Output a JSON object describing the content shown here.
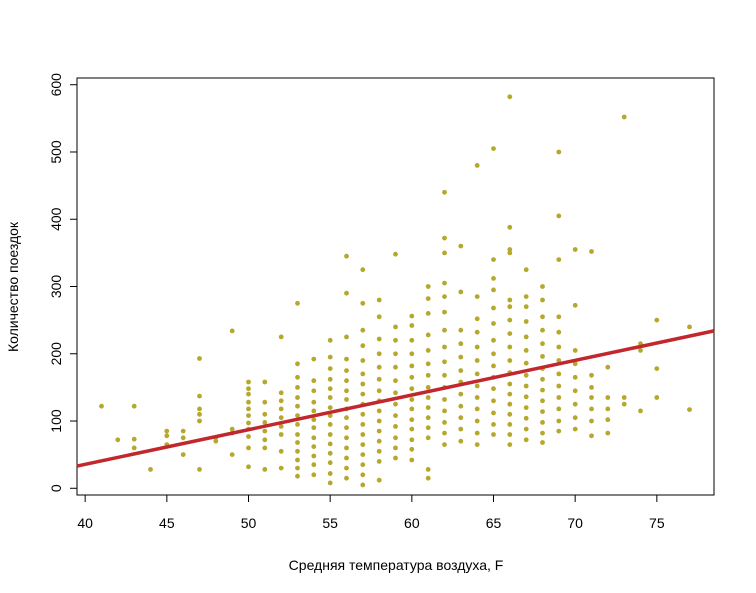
{
  "chart_data": {
    "type": "scatter",
    "title": "",
    "xlabel": "Средняя температура воздуха, F",
    "ylabel": "Количество поездок",
    "xlim": [
      39.5,
      78.5
    ],
    "ylim": [
      -10,
      610
    ],
    "x_ticks": [
      40,
      45,
      50,
      55,
      60,
      65,
      70,
      75
    ],
    "y_ticks": [
      0,
      100,
      200,
      300,
      400,
      500,
      600
    ],
    "grid": false,
    "legend": "none",
    "point_color": "#b5a82c",
    "line_color": "#c1272d",
    "regression_line": {
      "x": [
        39.5,
        78.5
      ],
      "y": [
        33,
        234
      ]
    },
    "points": [
      [
        41,
        122
      ],
      [
        42,
        72
      ],
      [
        43,
        60
      ],
      [
        43,
        73
      ],
      [
        43,
        122
      ],
      [
        44,
        28
      ],
      [
        45,
        65
      ],
      [
        45,
        78
      ],
      [
        45,
        85
      ],
      [
        46,
        50
      ],
      [
        46,
        75
      ],
      [
        46,
        85
      ],
      [
        47,
        28
      ],
      [
        47,
        100
      ],
      [
        47,
        110
      ],
      [
        47,
        118
      ],
      [
        47,
        137
      ],
      [
        47,
        193
      ],
      [
        48,
        70
      ],
      [
        48,
        75
      ],
      [
        49,
        50
      ],
      [
        49,
        82
      ],
      [
        49,
        88
      ],
      [
        49,
        234
      ],
      [
        50,
        32
      ],
      [
        50,
        60
      ],
      [
        50,
        77
      ],
      [
        50,
        88
      ],
      [
        50,
        97
      ],
      [
        50,
        108
      ],
      [
        50,
        118
      ],
      [
        50,
        128
      ],
      [
        50,
        140
      ],
      [
        50,
        148
      ],
      [
        50,
        158
      ],
      [
        51,
        28
      ],
      [
        51,
        60
      ],
      [
        51,
        72
      ],
      [
        51,
        85
      ],
      [
        51,
        98
      ],
      [
        51,
        110
      ],
      [
        51,
        128
      ],
      [
        51,
        158
      ],
      [
        52,
        30
      ],
      [
        52,
        55
      ],
      [
        52,
        80
      ],
      [
        52,
        92
      ],
      [
        52,
        105
      ],
      [
        52,
        118
      ],
      [
        52,
        130
      ],
      [
        52,
        142
      ],
      [
        52,
        225
      ],
      [
        53,
        18
      ],
      [
        53,
        30
      ],
      [
        53,
        42
      ],
      [
        53,
        55
      ],
      [
        53,
        68
      ],
      [
        53,
        80
      ],
      [
        53,
        95
      ],
      [
        53,
        108
      ],
      [
        53,
        122
      ],
      [
        53,
        135
      ],
      [
        53,
        150
      ],
      [
        53,
        165
      ],
      [
        53,
        185
      ],
      [
        53,
        275
      ],
      [
        54,
        20
      ],
      [
        54,
        35
      ],
      [
        54,
        48
      ],
      [
        54,
        62
      ],
      [
        54,
        75
      ],
      [
        54,
        90
      ],
      [
        54,
        102
      ],
      [
        54,
        115
      ],
      [
        54,
        128
      ],
      [
        54,
        145
      ],
      [
        54,
        160
      ],
      [
        54,
        192
      ],
      [
        55,
        8
      ],
      [
        55,
        22
      ],
      [
        55,
        38
      ],
      [
        55,
        52
      ],
      [
        55,
        66
      ],
      [
        55,
        80
      ],
      [
        55,
        95
      ],
      [
        55,
        108
      ],
      [
        55,
        120
      ],
      [
        55,
        135
      ],
      [
        55,
        148
      ],
      [
        55,
        162
      ],
      [
        55,
        178
      ],
      [
        55,
        195
      ],
      [
        55,
        220
      ],
      [
        56,
        15
      ],
      [
        56,
        30
      ],
      [
        56,
        45
      ],
      [
        56,
        60
      ],
      [
        56,
        75
      ],
      [
        56,
        90
      ],
      [
        56,
        105
      ],
      [
        56,
        118
      ],
      [
        56,
        132
      ],
      [
        56,
        145
      ],
      [
        56,
        160
      ],
      [
        56,
        175
      ],
      [
        56,
        192
      ],
      [
        56,
        225
      ],
      [
        56,
        290
      ],
      [
        56,
        345
      ],
      [
        57,
        5
      ],
      [
        57,
        20
      ],
      [
        57,
        35
      ],
      [
        57,
        50
      ],
      [
        57,
        65
      ],
      [
        57,
        80
      ],
      [
        57,
        95
      ],
      [
        57,
        110
      ],
      [
        57,
        125
      ],
      [
        57,
        140
      ],
      [
        57,
        155
      ],
      [
        57,
        170
      ],
      [
        57,
        190
      ],
      [
        57,
        212
      ],
      [
        57,
        235
      ],
      [
        57,
        275
      ],
      [
        57,
        325
      ],
      [
        58,
        12
      ],
      [
        58,
        40
      ],
      [
        58,
        55
      ],
      [
        58,
        70
      ],
      [
        58,
        85
      ],
      [
        58,
        100
      ],
      [
        58,
        115
      ],
      [
        58,
        130
      ],
      [
        58,
        145
      ],
      [
        58,
        162
      ],
      [
        58,
        180
      ],
      [
        58,
        200
      ],
      [
        58,
        222
      ],
      [
        58,
        255
      ],
      [
        58,
        280
      ],
      [
        59,
        45
      ],
      [
        59,
        60
      ],
      [
        59,
        75
      ],
      [
        59,
        92
      ],
      [
        59,
        108
      ],
      [
        59,
        125
      ],
      [
        59,
        142
      ],
      [
        59,
        160
      ],
      [
        59,
        180
      ],
      [
        59,
        200
      ],
      [
        59,
        220
      ],
      [
        59,
        240
      ],
      [
        59,
        348
      ],
      [
        60,
        42
      ],
      [
        60,
        58
      ],
      [
        60,
        72
      ],
      [
        60,
        88
      ],
      [
        60,
        102
      ],
      [
        60,
        118
      ],
      [
        60,
        132
      ],
      [
        60,
        148
      ],
      [
        60,
        165
      ],
      [
        60,
        182
      ],
      [
        60,
        200
      ],
      [
        60,
        220
      ],
      [
        60,
        242
      ],
      [
        60,
        256
      ],
      [
        61,
        15
      ],
      [
        61,
        28
      ],
      [
        61,
        75
      ],
      [
        61,
        90
      ],
      [
        61,
        105
      ],
      [
        61,
        120
      ],
      [
        61,
        135
      ],
      [
        61,
        150
      ],
      [
        61,
        168
      ],
      [
        61,
        185
      ],
      [
        61,
        205
      ],
      [
        61,
        228
      ],
      [
        61,
        260
      ],
      [
        61,
        282
      ],
      [
        61,
        300
      ],
      [
        62,
        65
      ],
      [
        62,
        82
      ],
      [
        62,
        98
      ],
      [
        62,
        115
      ],
      [
        62,
        132
      ],
      [
        62,
        150
      ],
      [
        62,
        168
      ],
      [
        62,
        188
      ],
      [
        62,
        210
      ],
      [
        62,
        235
      ],
      [
        62,
        262
      ],
      [
        62,
        285
      ],
      [
        62,
        305
      ],
      [
        62,
        350
      ],
      [
        62,
        372
      ],
      [
        62,
        440
      ],
      [
        63,
        70
      ],
      [
        63,
        88
      ],
      [
        63,
        105
      ],
      [
        63,
        122
      ],
      [
        63,
        140
      ],
      [
        63,
        158
      ],
      [
        63,
        175
      ],
      [
        63,
        195
      ],
      [
        63,
        215
      ],
      [
        63,
        235
      ],
      [
        63,
        292
      ],
      [
        63,
        360
      ],
      [
        64,
        65
      ],
      [
        64,
        82
      ],
      [
        64,
        100
      ],
      [
        64,
        118
      ],
      [
        64,
        135
      ],
      [
        64,
        152
      ],
      [
        64,
        170
      ],
      [
        64,
        190
      ],
      [
        64,
        210
      ],
      [
        64,
        232
      ],
      [
        64,
        252
      ],
      [
        64,
        285
      ],
      [
        64,
        480
      ],
      [
        65,
        80
      ],
      [
        65,
        95
      ],
      [
        65,
        112
      ],
      [
        65,
        130
      ],
      [
        65,
        148
      ],
      [
        65,
        165
      ],
      [
        65,
        182
      ],
      [
        65,
        200
      ],
      [
        65,
        220
      ],
      [
        65,
        245
      ],
      [
        65,
        268
      ],
      [
        65,
        295
      ],
      [
        65,
        312
      ],
      [
        65,
        340
      ],
      [
        65,
        505
      ],
      [
        66,
        65
      ],
      [
        66,
        80
      ],
      [
        66,
        95
      ],
      [
        66,
        110
      ],
      [
        66,
        125
      ],
      [
        66,
        140
      ],
      [
        66,
        155
      ],
      [
        66,
        172
      ],
      [
        66,
        190
      ],
      [
        66,
        210
      ],
      [
        66,
        230
      ],
      [
        66,
        250
      ],
      [
        66,
        270
      ],
      [
        66,
        280
      ],
      [
        66,
        350
      ],
      [
        66,
        355
      ],
      [
        66,
        388
      ],
      [
        66,
        582
      ],
      [
        67,
        72
      ],
      [
        67,
        88
      ],
      [
        67,
        104
      ],
      [
        67,
        120
      ],
      [
        67,
        136
      ],
      [
        67,
        152
      ],
      [
        67,
        168
      ],
      [
        67,
        186
      ],
      [
        67,
        205
      ],
      [
        67,
        225
      ],
      [
        67,
        248
      ],
      [
        67,
        270
      ],
      [
        67,
        285
      ],
      [
        67,
        325
      ],
      [
        68,
        68
      ],
      [
        68,
        82
      ],
      [
        68,
        98
      ],
      [
        68,
        114
      ],
      [
        68,
        130
      ],
      [
        68,
        146
      ],
      [
        68,
        162
      ],
      [
        68,
        178
      ],
      [
        68,
        196
      ],
      [
        68,
        215
      ],
      [
        68,
        235
      ],
      [
        68,
        255
      ],
      [
        68,
        280
      ],
      [
        68,
        300
      ],
      [
        69,
        85
      ],
      [
        69,
        100
      ],
      [
        69,
        118
      ],
      [
        69,
        135
      ],
      [
        69,
        152
      ],
      [
        69,
        170
      ],
      [
        69,
        190
      ],
      [
        69,
        210
      ],
      [
        69,
        232
      ],
      [
        69,
        255
      ],
      [
        69,
        340
      ],
      [
        69,
        405
      ],
      [
        69,
        500
      ],
      [
        70,
        88
      ],
      [
        70,
        105
      ],
      [
        70,
        125
      ],
      [
        70,
        145
      ],
      [
        70,
        165
      ],
      [
        70,
        185
      ],
      [
        70,
        205
      ],
      [
        70,
        272
      ],
      [
        70,
        355
      ],
      [
        71,
        78
      ],
      [
        71,
        100
      ],
      [
        71,
        118
      ],
      [
        71,
        135
      ],
      [
        71,
        150
      ],
      [
        71,
        168
      ],
      [
        71,
        352
      ],
      [
        72,
        82
      ],
      [
        72,
        102
      ],
      [
        72,
        118
      ],
      [
        72,
        135
      ],
      [
        72,
        180
      ],
      [
        73,
        125
      ],
      [
        73,
        135
      ],
      [
        73,
        552
      ],
      [
        74,
        115
      ],
      [
        74,
        205
      ],
      [
        74,
        215
      ],
      [
        75,
        135
      ],
      [
        75,
        178
      ],
      [
        75,
        250
      ],
      [
        77,
        117
      ],
      [
        77,
        240
      ]
    ]
  }
}
